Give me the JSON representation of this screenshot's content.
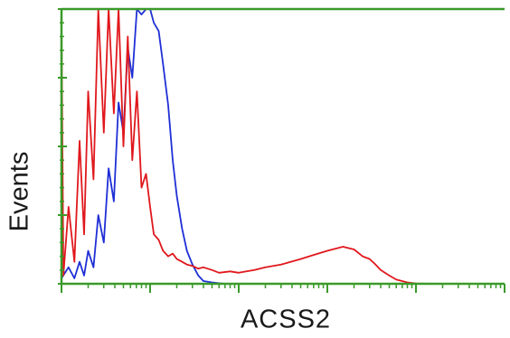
{
  "chart_data": {
    "type": "line",
    "title": "",
    "xlabel": "ACSS2",
    "ylabel": "Events",
    "x_scale": "log",
    "xlim": [
      1,
      100000
    ],
    "ylim": [
      0,
      100
    ],
    "grid": false,
    "legend": "none",
    "colors": {
      "axis": "#3a9a2a",
      "series_blue": "#1f2fd6",
      "series_red": "#e0181d"
    },
    "series": [
      {
        "color": "#1f2fd6",
        "x": [
          1.0,
          1.2,
          1.4,
          1.6,
          1.8,
          2.0,
          2.3,
          2.6,
          3.0,
          3.4,
          3.9,
          4.4,
          5.0,
          5.6,
          6.3,
          7.1,
          8.0,
          9.0,
          10,
          11,
          12.5,
          14,
          16,
          18,
          20,
          23,
          26,
          30,
          35,
          40,
          50,
          60,
          70
        ],
        "values": [
          2,
          6,
          2,
          8,
          3,
          12,
          6,
          25,
          15,
          42,
          30,
          66,
          55,
          86,
          75,
          100,
          98,
          100,
          100,
          95,
          92,
          80,
          65,
          45,
          32,
          20,
          12,
          7,
          3,
          1,
          0.5,
          0.2,
          0
        ]
      },
      {
        "color": "#e0181d",
        "x": [
          1.0,
          1.05,
          1.2,
          1.4,
          1.6,
          1.8,
          2.0,
          2.3,
          2.6,
          3.0,
          3.4,
          3.9,
          4.4,
          5.0,
          5.6,
          6.3,
          7.1,
          8.0,
          9.0,
          10,
          11,
          12.5,
          14,
          16,
          18,
          20,
          23,
          26,
          30,
          35,
          40,
          50,
          60,
          80,
          100,
          150,
          200,
          300,
          500,
          700,
          1000,
          1500,
          2000,
          2500,
          3000,
          3500,
          4000,
          5000,
          6000,
          8000,
          10000,
          15000,
          20000
        ],
        "values": [
          95,
          3,
          28,
          8,
          52,
          18,
          70,
          38,
          100,
          55,
          100,
          62,
          100,
          50,
          90,
          45,
          70,
          35,
          40,
          28,
          18,
          16,
          12,
          10,
          11,
          9,
          8,
          7,
          6.5,
          5.5,
          6,
          5,
          4,
          4.5,
          4,
          5,
          6,
          7,
          9,
          10.5,
          12,
          13.5,
          12.5,
          10,
          9,
          7,
          5,
          3,
          1.5,
          0.5,
          0.1,
          0,
          0
        ]
      }
    ]
  }
}
